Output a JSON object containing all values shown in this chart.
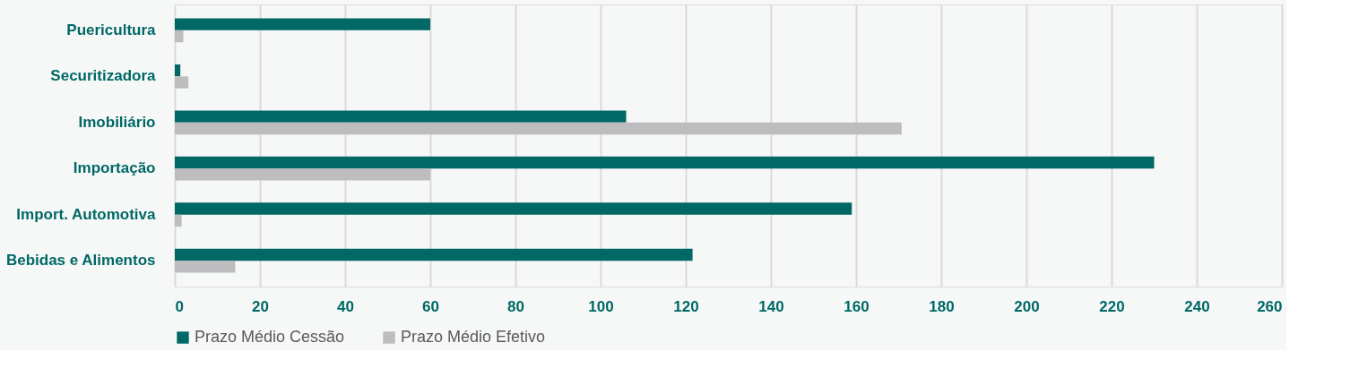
{
  "chart_data": {
    "type": "bar",
    "orientation": "horizontal",
    "categories": [
      "Puericultura",
      "Securitizadora",
      "Imobiliário",
      "Importação",
      "Import. Automotiva",
      "Bebidas e Alimentos"
    ],
    "series": [
      {
        "name": "Prazo Médio Cessão",
        "color": "#006865",
        "values": [
          60,
          1.3,
          106,
          230,
          159,
          121.6
        ]
      },
      {
        "name": "Prazo Médio Efetivo",
        "color": "#bdbdbf",
        "values": [
          2,
          3.2,
          170.7,
          60,
          1.6,
          14.2
        ]
      }
    ],
    "xlim": [
      0,
      260
    ],
    "xticks": [
      0,
      20,
      40,
      60,
      80,
      100,
      120,
      140,
      160,
      180,
      200,
      220,
      240,
      260
    ],
    "grid": "x",
    "legend": "bottom"
  }
}
